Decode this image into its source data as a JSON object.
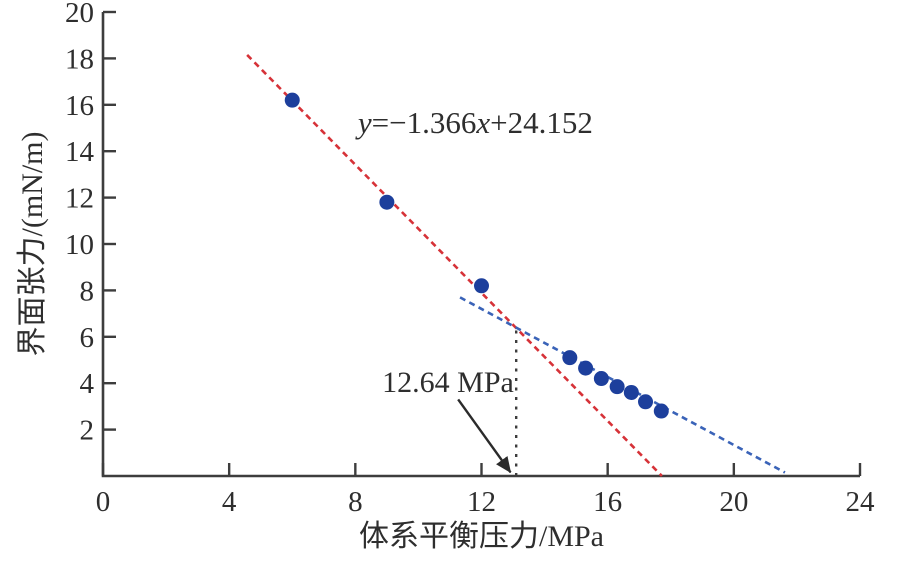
{
  "figure": {
    "background": "#ffffff"
  },
  "chart_data": {
    "type": "scatter",
    "title": "",
    "xlabel": "体系平衡压力/MPa",
    "ylabel": "界面张力/(mN/m)",
    "xlim": [
      0,
      24
    ],
    "ylim": [
      0,
      20
    ],
    "xticks": [
      0,
      4,
      8,
      12,
      16,
      20,
      24
    ],
    "yticks": [
      2,
      4,
      6,
      8,
      10,
      12,
      14,
      16,
      18,
      20
    ],
    "grid": false,
    "legend": "none",
    "axis_color": "#3d3d3d",
    "text_color": "#2e2e2e",
    "series": [
      {
        "name": "ift-data-points",
        "type": "scatter",
        "marker": "circle",
        "color": "#1d3f9c",
        "points": [
          [
            6.0,
            16.2
          ],
          [
            9.0,
            11.8
          ],
          [
            12.0,
            8.2
          ],
          [
            14.8,
            5.1
          ],
          [
            15.3,
            4.65
          ],
          [
            15.8,
            4.2
          ],
          [
            16.3,
            3.85
          ],
          [
            16.75,
            3.6
          ],
          [
            17.2,
            3.2
          ],
          [
            17.7,
            2.8
          ]
        ]
      },
      {
        "name": "upper-trendline",
        "type": "line",
        "style": "dashed",
        "color": "#d63238",
        "equation": "y=−1.366x+24.152",
        "x1": 4.57,
        "y1": 18.15,
        "x2": 17.72,
        "y2": 0.0
      },
      {
        "name": "lower-trendline",
        "type": "line",
        "style": "dashed",
        "color": "#3a63b8",
        "x1": 11.32,
        "y1": 7.7,
        "x2": 21.62,
        "y2": 0.15
      }
    ],
    "annotations": {
      "equation_label": {
        "text": "y=−1.366x+24.152",
        "parts": [
          {
            "t": "y",
            "italic": true
          },
          {
            "t": "=−1.366",
            "italic": false
          },
          {
            "t": "x",
            "italic": true
          },
          {
            "t": "+24.152",
            "italic": false
          }
        ],
        "x": 8.08,
        "y": 14.78
      },
      "mmp_label": {
        "text": "12.64 MPa",
        "x": 8.85,
        "y": 3.62,
        "arrow": {
          "x1": 11.26,
          "y1": 3.3,
          "x2": 12.92,
          "y2": 0.16,
          "color": "#2b2b2b"
        }
      },
      "mmp_vline": {
        "x": 13.1,
        "y1": 0,
        "y2": 6.3,
        "color": "#3d3d3d"
      }
    }
  }
}
